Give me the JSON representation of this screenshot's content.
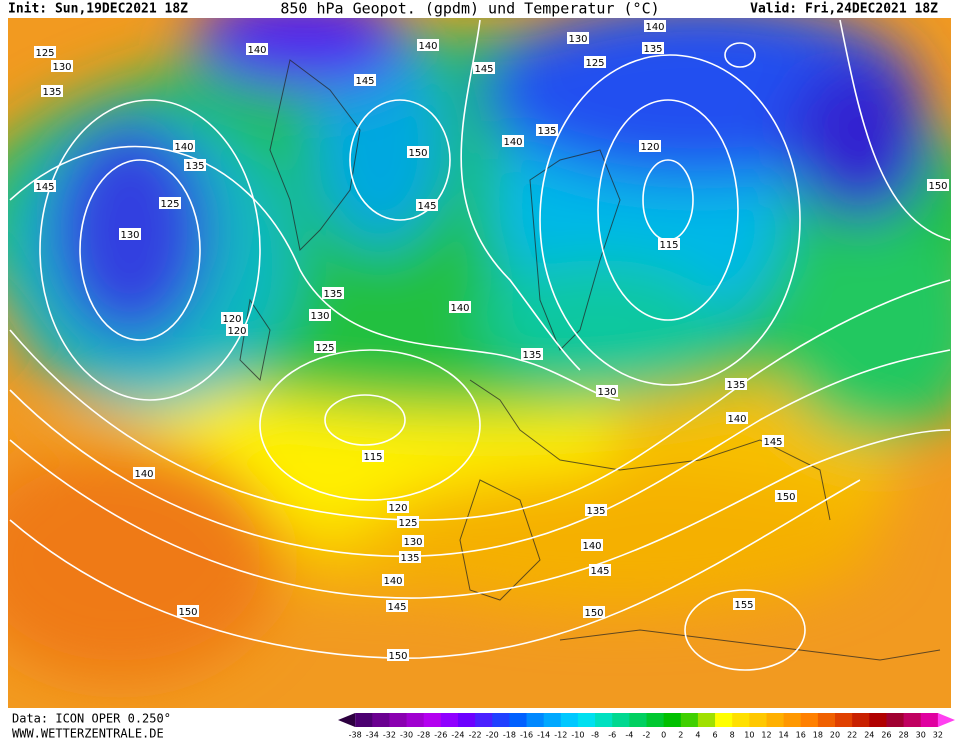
{
  "header": {
    "init": "Init: Sun,19DEC2021 18Z",
    "title": "850 hPa Geopot. (gpdm) und Temperatur (°C)",
    "valid": "Valid: Fri,24DEC2021 18Z"
  },
  "footer": {
    "data": "Data: ICON OPER 0.250°",
    "site": "WWW.WETTERZENTRALE.DE"
  },
  "contour_labels": [
    125,
    130,
    135,
    140,
    140,
    145,
    145,
    150,
    145,
    140,
    135,
    125,
    130,
    145,
    140,
    135,
    130,
    125,
    140,
    135,
    120,
    115,
    150,
    135,
    130,
    140,
    125,
    120,
    120,
    135,
    130,
    135,
    140,
    145,
    150,
    115,
    120,
    125,
    130,
    135,
    140,
    145,
    150,
    150,
    155,
    150,
    145,
    140,
    135,
    140
  ],
  "legend": {
    "labels": [
      -38,
      -34,
      -32,
      -30,
      -28,
      -26,
      -24,
      -22,
      -20,
      -18,
      -16,
      -14,
      -12,
      -10,
      -8,
      -6,
      -4,
      -2,
      0,
      2,
      4,
      6,
      8,
      10,
      12,
      14,
      16,
      18,
      20,
      22,
      24,
      26,
      28,
      30,
      32
    ],
    "colors": [
      "#2d0040",
      "#4b0070",
      "#6a0090",
      "#8a00b0",
      "#a000d0",
      "#b400f0",
      "#9000ff",
      "#6c00ff",
      "#4a20ff",
      "#2040ff",
      "#0060ff",
      "#0088ff",
      "#00a8ff",
      "#00c8ff",
      "#00e0f0",
      "#00e0c0",
      "#00d890",
      "#00d060",
      "#00c830",
      "#00c000",
      "#40d000",
      "#a0e000",
      "#ffff00",
      "#ffe000",
      "#ffc800",
      "#ffb000",
      "#ff9800",
      "#ff8000",
      "#f06000",
      "#e04000",
      "#c82000",
      "#b00000",
      "#a00030",
      "#c00060",
      "#e000a0",
      "#ff40f0"
    ]
  }
}
